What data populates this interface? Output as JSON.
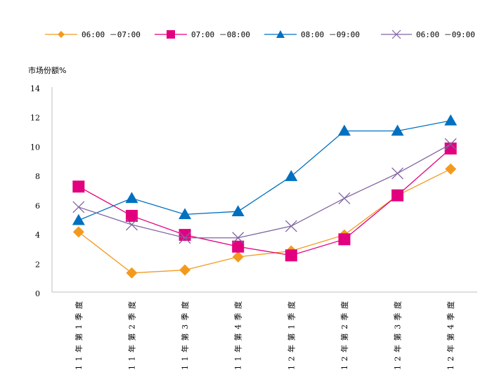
{
  "chart_data": {
    "type": "line",
    "title": "",
    "xlabel": "",
    "ylabel": "市场份额%",
    "ylim": [
      0,
      14
    ],
    "yticks": [
      "0",
      "2",
      "4",
      "6",
      "8",
      "10",
      "12",
      "14"
    ],
    "grid": false,
    "legend_position": "top",
    "categories": [
      "11年第1季度",
      "11年第2季度",
      "11年第3季度",
      "11年第4季度",
      "12年第1季度",
      "12年第2季度",
      "12年第3季度",
      "12年第4季度"
    ],
    "series": [
      {
        "name": "06:00 －07:00",
        "color": "#F39A1E",
        "marker": "diamond",
        "values": [
          4.2,
          1.4,
          1.6,
          2.5,
          2.9,
          4.0,
          6.7,
          8.5
        ]
      },
      {
        "name": "07:00 －08:00",
        "color": "#E3007F",
        "marker": "square",
        "values": [
          7.3,
          5.3,
          4.0,
          3.2,
          2.6,
          3.7,
          6.7,
          9.9
        ]
      },
      {
        "name": "08:00 －09:00",
        "color": "#0070C0",
        "marker": "triangle",
        "values": [
          5.0,
          6.5,
          5.4,
          5.6,
          8.0,
          11.1,
          11.1,
          11.8
        ]
      },
      {
        "name": "06:00 －09:00",
        "color": "#8064A2",
        "marker": "x",
        "values": [
          5.9,
          4.7,
          3.8,
          3.8,
          4.6,
          6.5,
          8.2,
          10.2
        ]
      }
    ]
  }
}
